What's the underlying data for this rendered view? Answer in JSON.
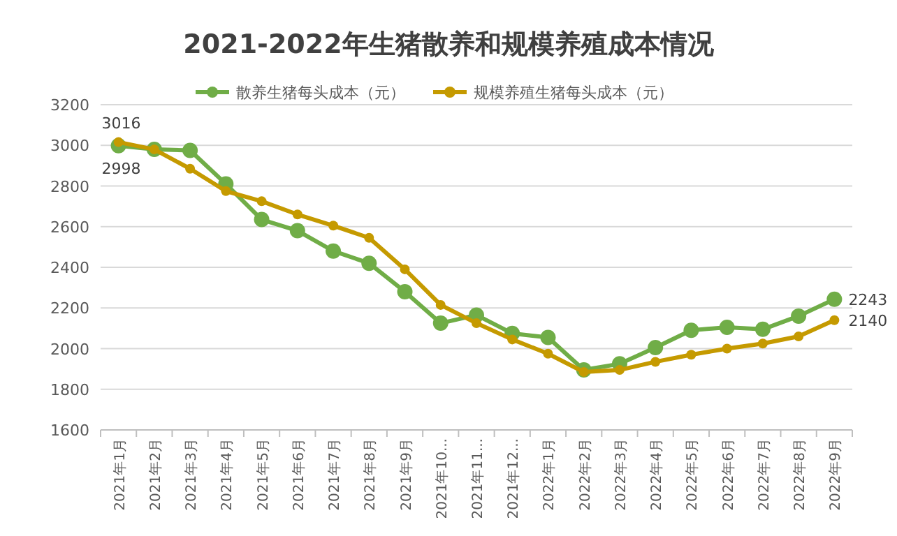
{
  "chart_data": {
    "type": "line",
    "title": "2021-2022年生猪散养和规模养殖成本情况",
    "categories": [
      "2021年1月",
      "2021年2月",
      "2021年3月",
      "2021年4月",
      "2021年5月",
      "2021年6月",
      "2021年7月",
      "2021年8月",
      "2021年9月",
      "2021年10...",
      "2021年11...",
      "2021年12...",
      "2022年1月",
      "2022年2月",
      "2022年3月",
      "2022年4月",
      "2022年5月",
      "2022年6月",
      "2022年7月",
      "2022年8月",
      "2022年9月"
    ],
    "series": [
      {
        "name": "散养生猪每头成本（元）",
        "color": "#70ad47",
        "values": [
          2998,
          2980,
          2975,
          2810,
          2635,
          2580,
          2480,
          2420,
          2280,
          2125,
          2165,
          2075,
          2055,
          1895,
          1925,
          2005,
          2090,
          2105,
          2095,
          2160,
          2243
        ],
        "value_labels": [
          "2998",
          null,
          null,
          null,
          null,
          null,
          null,
          null,
          null,
          null,
          null,
          null,
          null,
          null,
          null,
          null,
          null,
          null,
          null,
          null,
          "2243"
        ]
      },
      {
        "name": "规模养殖生猪每头成本（元）",
        "color": "#c59a00",
        "values": [
          3016,
          2980,
          2885,
          2775,
          2725,
          2660,
          2605,
          2545,
          2390,
          2215,
          2125,
          2045,
          1975,
          1885,
          1895,
          1935,
          1970,
          2000,
          2025,
          2060,
          2140
        ],
        "value_labels": [
          "3016",
          null,
          null,
          null,
          null,
          null,
          null,
          null,
          null,
          null,
          null,
          null,
          null,
          null,
          null,
          null,
          null,
          null,
          null,
          null,
          "2140"
        ]
      }
    ],
    "ylim": [
      1600,
      3200
    ],
    "yticks": [
      1600,
      1800,
      2000,
      2200,
      2400,
      2600,
      2800,
      3000,
      3200
    ],
    "grid": "y",
    "legend": "top",
    "marker": "circle",
    "line_style": "solid"
  }
}
